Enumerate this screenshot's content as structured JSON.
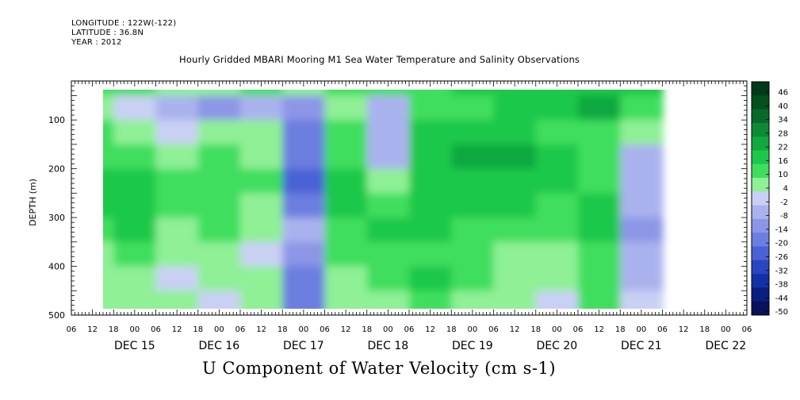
{
  "header": {
    "longitude": "LONGITUDE : 122W(-122)",
    "latitude": "LATITUDE : 36.8N",
    "year": "YEAR : 2012",
    "title": "Hourly Gridded MBARI Mooring M1 Sea Water Temperature and Salinity Observations"
  },
  "chart_data": {
    "type": "heatmap",
    "title": "Hourly Gridded MBARI Mooring M1 Sea Water Temperature and Salinity Observations",
    "xlabel": "U Component of Water Velocity (cm s-1)",
    "ylabel": "DEPTH (m)",
    "x_hour_ticks": [
      "06",
      "12",
      "18",
      "00",
      "06",
      "12",
      "18",
      "00",
      "06",
      "12",
      "18",
      "00",
      "06",
      "12",
      "18",
      "00",
      "06",
      "12",
      "18",
      "00",
      "06",
      "12",
      "18",
      "00",
      "06",
      "12",
      "18",
      "00",
      "06",
      "12",
      "18",
      "00",
      "06"
    ],
    "x_day_labels": [
      "DEC 15",
      "DEC 16",
      "DEC 17",
      "DEC 18",
      "DEC 19",
      "DEC 20",
      "DEC 21",
      "DEC 22"
    ],
    "y_ticks": [
      100,
      200,
      300,
      400,
      500
    ],
    "ylim": [
      500,
      20
    ],
    "depth_range": [
      20,
      485
    ],
    "colorbar_levels": [
      46,
      40,
      34,
      28,
      22,
      16,
      10,
      4,
      -2,
      -8,
      -14,
      -20,
      -26,
      -32,
      -38,
      -44,
      -50
    ],
    "colorbar_colors": {
      "46": "#003b19",
      "40": "#05501f",
      "34": "#086a2a",
      "28": "#0c8a35",
      "22": "#10a83f",
      "16": "#1cc84a",
      "10": "#3fde5e",
      "4": "#8ff096",
      "-2": "#c9d0f4",
      "-8": "#aab2ee",
      "-14": "#8d96e6",
      "-20": "#6c7ee0",
      "-26": "#4a62d6",
      "-32": "#2a45c2",
      "-38": "#1430a6",
      "-44": "#091f80",
      "-50": "#06125a"
    },
    "time_ticks_days": [
      0.25,
      0.5,
      0.75,
      1.0,
      1.25,
      1.5,
      1.75,
      2.0,
      2.25,
      2.5,
      2.75,
      3.0,
      3.25,
      3.5,
      3.75,
      4.0,
      4.25,
      4.5,
      4.75,
      5.0,
      5.25,
      5.5,
      5.75,
      6.0,
      6.25,
      6.5,
      6.75,
      7.0,
      7.25,
      7.5,
      7.75,
      8.0,
      8.25
    ],
    "time_columns": [
      "12h Dec 15",
      "00h Dec 16",
      "12h Dec 16",
      "00h Dec 17",
      "12h Dec 17",
      "00h Dec 18",
      "12h Dec 18",
      "00h Dec 19",
      "12h Dec 19",
      "00h Dec 20",
      "12h Dec 20",
      "00h Dec 21",
      "12h Dec 21",
      "00h Dec 22"
    ],
    "grid_depths": [
      25,
      75,
      125,
      175,
      225,
      275,
      325,
      375,
      425,
      475
    ],
    "values": [
      [
        12,
        10,
        6,
        8,
        10,
        6,
        14,
        10,
        12,
        16,
        16,
        18,
        20,
        18
      ],
      [
        8,
        2,
        -6,
        -10,
        -6,
        -14,
        4,
        -4,
        10,
        14,
        16,
        18,
        24,
        10
      ],
      [
        10,
        6,
        -2,
        6,
        4,
        -18,
        10,
        -6,
        16,
        18,
        20,
        14,
        12,
        6
      ],
      [
        14,
        12,
        6,
        10,
        8,
        -20,
        14,
        -4,
        18,
        22,
        22,
        18,
        12,
        -6
      ],
      [
        16,
        18,
        10,
        14,
        10,
        -24,
        16,
        6,
        20,
        20,
        20,
        16,
        14,
        -8
      ],
      [
        16,
        20,
        12,
        14,
        8,
        -16,
        18,
        14,
        20,
        18,
        16,
        14,
        18,
        -4
      ],
      [
        12,
        16,
        8,
        10,
        4,
        -8,
        14,
        16,
        18,
        14,
        12,
        10,
        16,
        -10
      ],
      [
        8,
        10,
        4,
        6,
        2,
        -14,
        12,
        10,
        14,
        10,
        6,
        6,
        12,
        -8
      ],
      [
        6,
        4,
        2,
        4,
        4,
        -20,
        8,
        12,
        16,
        10,
        4,
        4,
        12,
        -4
      ],
      [
        4,
        6,
        4,
        2,
        6,
        -18,
        6,
        8,
        14,
        8,
        8,
        2,
        10,
        -2
      ]
    ]
  }
}
